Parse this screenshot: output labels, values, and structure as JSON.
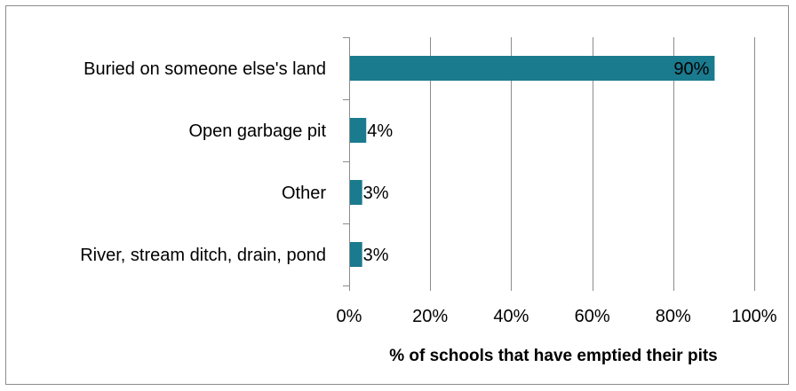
{
  "chart_data": {
    "type": "bar",
    "orientation": "horizontal",
    "categories": [
      "Buried on someone else's land",
      "Open garbage pit",
      "Other",
      "River, stream ditch, drain, pond"
    ],
    "values": [
      90,
      4,
      3,
      3
    ],
    "data_labels": [
      "90%",
      "4%",
      "3%",
      "3%"
    ],
    "xlabel": "% of schools that have emptied their pits",
    "ylabel": "",
    "xlim": [
      0,
      100
    ],
    "x_ticks": [
      "0%",
      "20%",
      "40%",
      "60%",
      "80%",
      "100%"
    ],
    "grid": "vertical",
    "legend": "none",
    "bar_color": "#1a7a8e"
  }
}
